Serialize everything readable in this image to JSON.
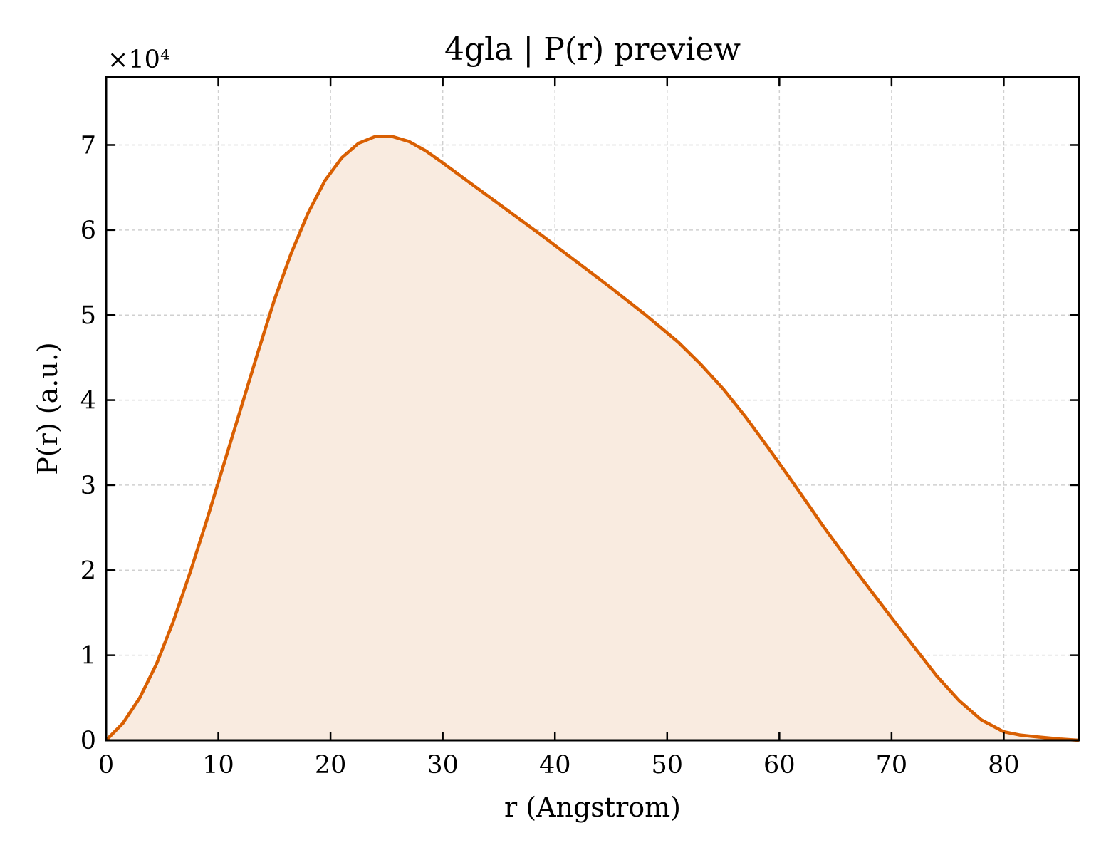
{
  "chart_data": {
    "type": "area",
    "title": "4gla | P(r) preview",
    "xlabel": "r (Angstrom)",
    "ylabel": "P(r) (a.u.)",
    "y_offset_label": "×10⁴",
    "y_scale": 10000,
    "xlim": [
      0,
      86.7
    ],
    "ylim": [
      0,
      78000
    ],
    "x_ticks": [
      0,
      10,
      20,
      30,
      40,
      50,
      60,
      70,
      80
    ],
    "y_ticks": [
      0,
      10000,
      20000,
      30000,
      40000,
      50000,
      60000,
      70000
    ],
    "grid": true,
    "line_color": "#d95f02",
    "fill_color": "#f9ebe0",
    "series": [
      {
        "x": [
          0,
          1.5,
          3,
          4.5,
          6,
          7.5,
          9,
          10.5,
          12,
          13.5,
          15,
          16.5,
          18,
          19.5,
          21,
          22.5,
          24,
          25.5,
          27,
          28.5,
          30,
          33,
          36,
          39,
          42,
          45,
          48,
          51,
          53,
          55,
          57,
          59,
          61,
          64,
          67,
          70,
          72,
          74,
          76,
          78,
          80,
          81.5,
          83,
          85,
          86.7
        ],
        "y": [
          0,
          2000,
          5000,
          9000,
          14000,
          19800,
          26000,
          32500,
          39000,
          45500,
          51800,
          57300,
          62000,
          65800,
          68500,
          70200,
          71000,
          71000,
          70400,
          69300,
          67900,
          65000,
          62100,
          59200,
          56200,
          53200,
          50100,
          46800,
          44200,
          41300,
          38000,
          34400,
          30700,
          25000,
          19600,
          14400,
          11000,
          7600,
          4700,
          2400,
          1000,
          600,
          400,
          150,
          0
        ]
      }
    ]
  }
}
